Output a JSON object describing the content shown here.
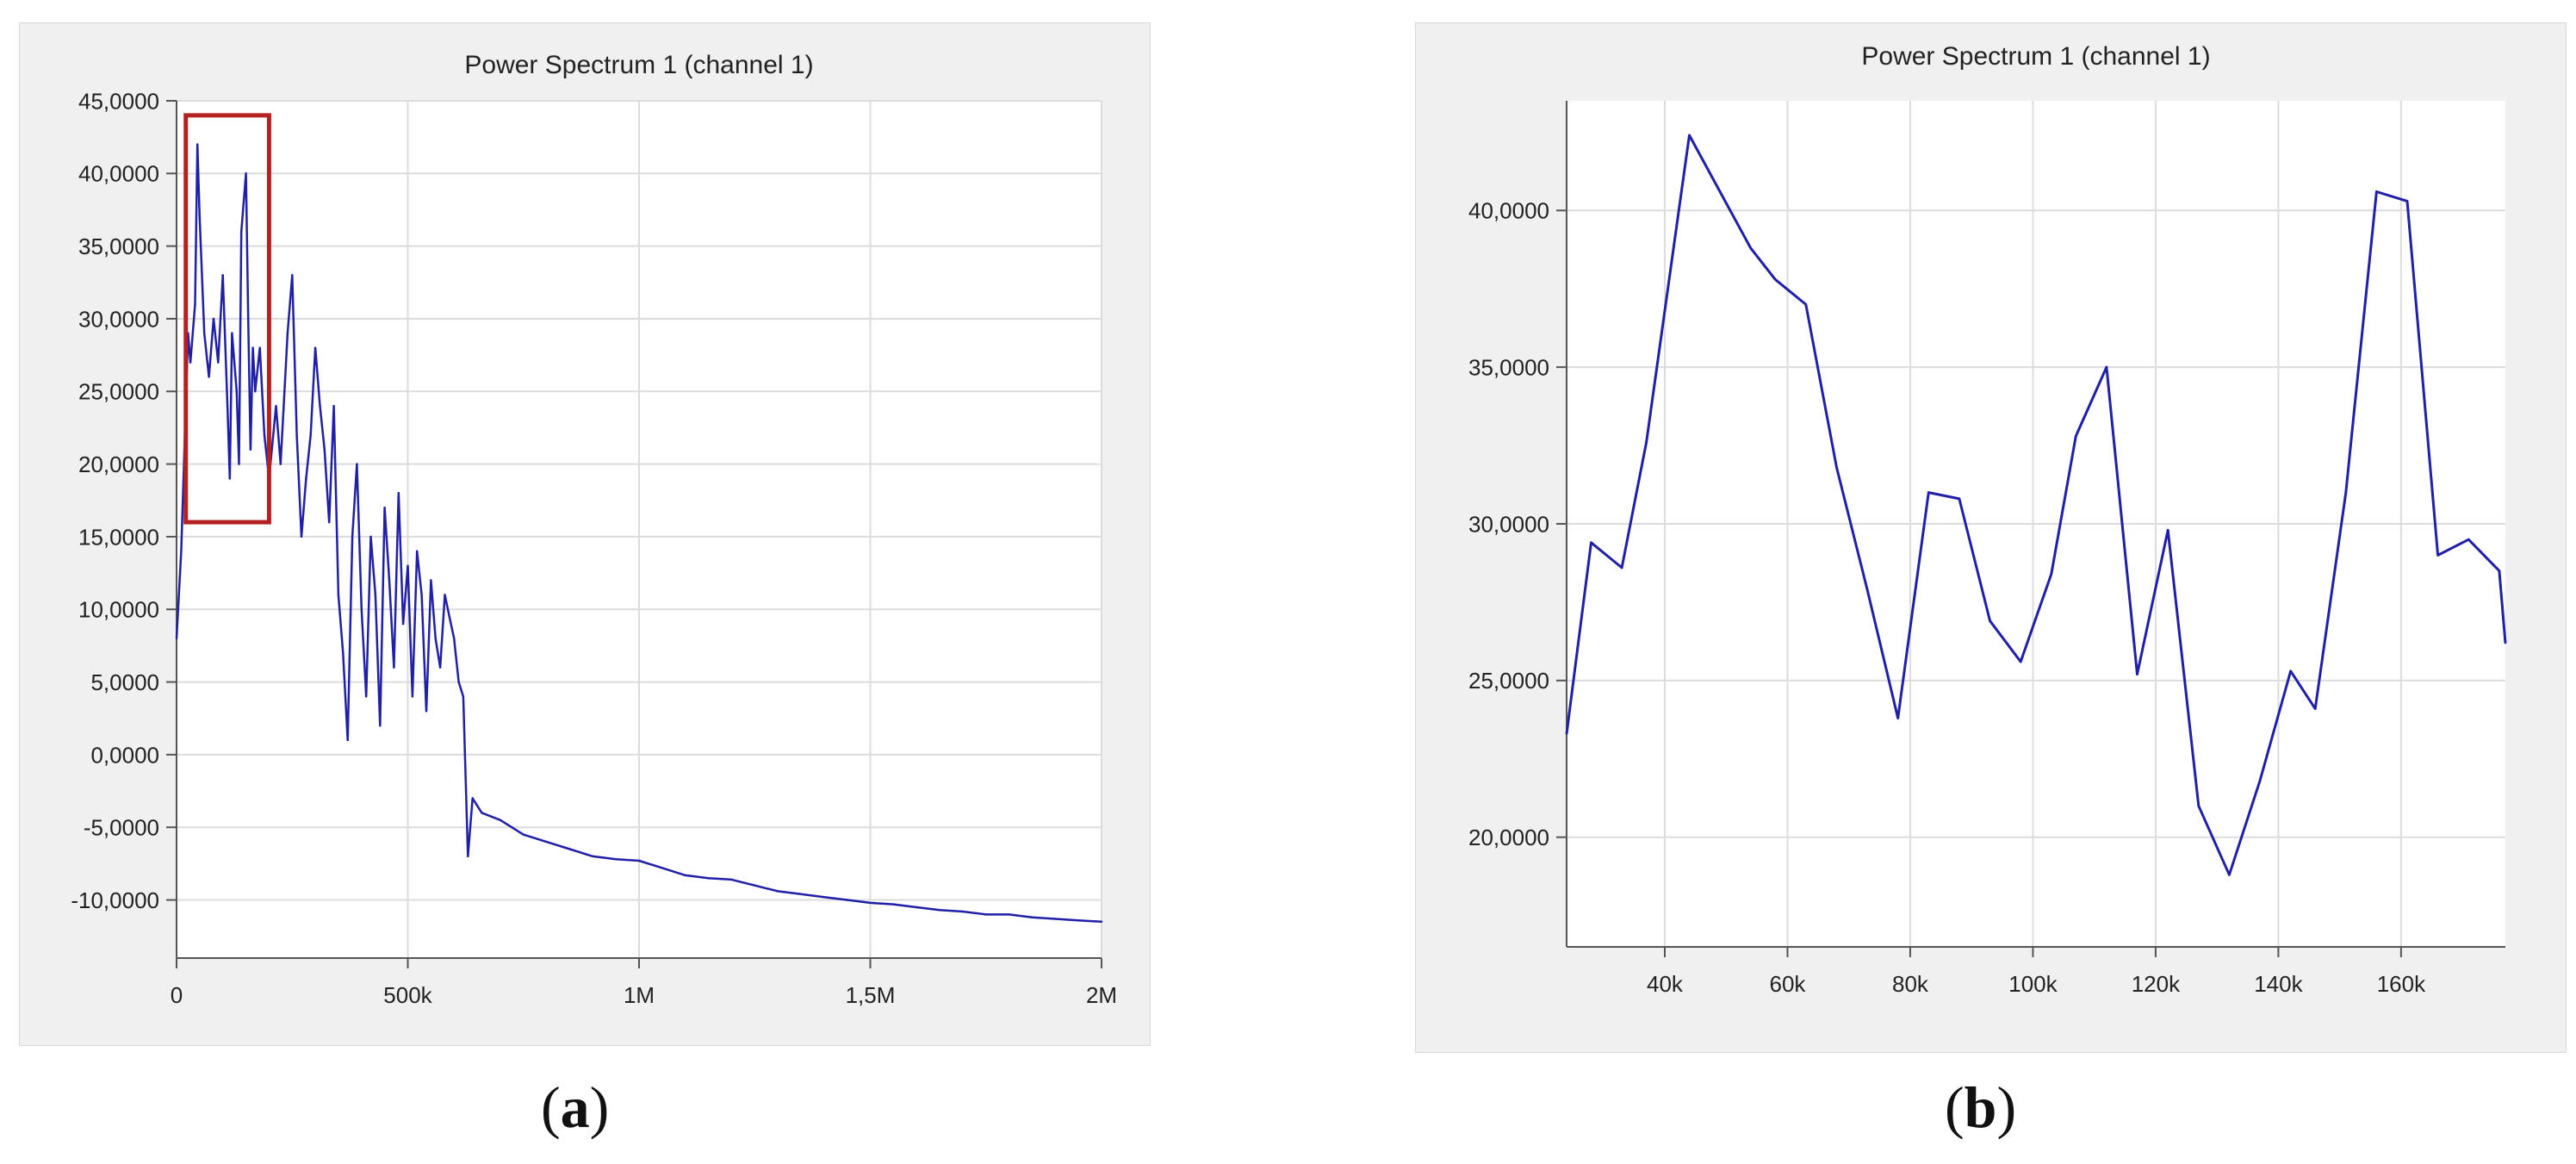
{
  "chart_data": [
    {
      "type": "line",
      "title": "Power Spectrum 1 (channel 1)",
      "xlabel": "",
      "ylabel": "",
      "caption": "a",
      "xlim": [
        0,
        2000000
      ],
      "ylim": [
        -14000,
        45000
      ],
      "x_ticks": [
        0,
        500000,
        1000000,
        1500000,
        2000000
      ],
      "x_tick_labels": [
        "0",
        "500k",
        "1M",
        "1,5M",
        "2M"
      ],
      "y_ticks": [
        -10000,
        -5000,
        0,
        5000,
        10000,
        15000,
        20000,
        25000,
        30000,
        35000,
        40000,
        45000
      ],
      "y_tick_labels": [
        "-10,0000",
        "-5,0000",
        "0,0000",
        "5,0000",
        "10,0000",
        "15,0000",
        "20,0000",
        "25,0000",
        "30,0000",
        "35,0000",
        "40,0000",
        "45,0000"
      ],
      "grid": true,
      "line_color": "#1f1fa8",
      "highlight_box": {
        "x_range": [
          20000,
          200000
        ],
        "y_range": [
          16000,
          44000
        ],
        "color": "#b52020"
      },
      "series": [
        {
          "x": [
            0,
            10000,
            25000,
            30000,
            40000,
            45000,
            50000,
            60000,
            70000,
            80000,
            90000,
            100000,
            110000,
            115000,
            120000,
            130000,
            135000,
            140000,
            150000,
            155000,
            160000,
            165000,
            170000,
            180000,
            190000,
            200000,
            215000,
            225000,
            240000,
            250000,
            260000,
            270000,
            280000,
            290000,
            300000,
            310000,
            320000,
            330000,
            340000,
            350000,
            360000,
            370000,
            380000,
            390000,
            400000,
            410000,
            420000,
            430000,
            440000,
            450000,
            460000,
            470000,
            480000,
            490000,
            500000,
            510000,
            520000,
            530000,
            540000,
            550000,
            560000,
            570000,
            580000,
            590000,
            600000,
            610000,
            620000,
            625000,
            630000,
            640000,
            650000,
            660000,
            700000,
            750000,
            800000,
            850000,
            900000,
            950000,
            1000000,
            1050000,
            1100000,
            1150000,
            1200000,
            1250000,
            1300000,
            1350000,
            1400000,
            1450000,
            1500000,
            1550000,
            1600000,
            1650000,
            1700000,
            1750000,
            1800000,
            1850000,
            1900000,
            1950000,
            2000000
          ],
          "values": [
            8000,
            14000,
            29000,
            27000,
            31000,
            42000,
            37000,
            29000,
            26000,
            30000,
            27000,
            33000,
            24000,
            19000,
            29000,
            25000,
            20000,
            36000,
            40000,
            30000,
            21000,
            28000,
            25000,
            28000,
            22000,
            19000,
            24000,
            20000,
            29000,
            33000,
            22000,
            15000,
            19000,
            22000,
            28000,
            24000,
            21000,
            16000,
            24000,
            11000,
            7000,
            1000,
            15000,
            20000,
            10000,
            4000,
            15000,
            11000,
            2000,
            17000,
            12000,
            6000,
            18000,
            9000,
            13000,
            4000,
            14000,
            11000,
            3000,
            12000,
            8000,
            6000,
            11000,
            9500,
            8000,
            5000,
            4000,
            -1500,
            -7000,
            -3000,
            -3500,
            -4000,
            -4500,
            -5500,
            -6000,
            -6500,
            -7000,
            -7200,
            -7300,
            -7800,
            -8300,
            -8500,
            -8600,
            -9000,
            -9400,
            -9600,
            -9800,
            -10000,
            -10200,
            -10300,
            -10500,
            -10700,
            -10800,
            -11000,
            -11000,
            -11200,
            -11300,
            -11400,
            -11500
          ]
        }
      ]
    },
    {
      "type": "line",
      "title": "Power Spectrum 1 (channel 1)",
      "xlabel": "",
      "ylabel": "",
      "caption": "b",
      "xlim": [
        24000,
        177000
      ],
      "ylim": [
        16500,
        43500
      ],
      "x_ticks": [
        40000,
        60000,
        80000,
        100000,
        120000,
        140000,
        160000
      ],
      "x_tick_labels": [
        "40k",
        "60k",
        "80k",
        "100k",
        "120k",
        "140k",
        "160k"
      ],
      "y_ticks": [
        20000,
        25000,
        30000,
        35000,
        40000
      ],
      "y_tick_labels": [
        "20,0000",
        "25,0000",
        "30,0000",
        "35,0000",
        "40,0000"
      ],
      "grid": true,
      "line_color": "#1f1fa8",
      "series": [
        {
          "x": [
            24000,
            28000,
            33000,
            37000,
            44000,
            49000,
            54000,
            58000,
            63000,
            68000,
            73000,
            78000,
            83000,
            88000,
            93000,
            98000,
            103000,
            107000,
            112000,
            117000,
            122000,
            127000,
            132000,
            137000,
            142000,
            146000,
            151000,
            156000,
            161000,
            166000,
            171000,
            176000,
            177000
          ],
          "values": [
            23300,
            29400,
            28600,
            32600,
            42400,
            40600,
            38800,
            37800,
            37000,
            31800,
            27900,
            23800,
            31000,
            30800,
            26900,
            25600,
            28400,
            32800,
            35000,
            25200,
            29800,
            21000,
            18800,
            21800,
            25300,
            24100,
            31000,
            40600,
            40300,
            29000,
            29500,
            28500,
            26200
          ]
        }
      ]
    }
  ]
}
